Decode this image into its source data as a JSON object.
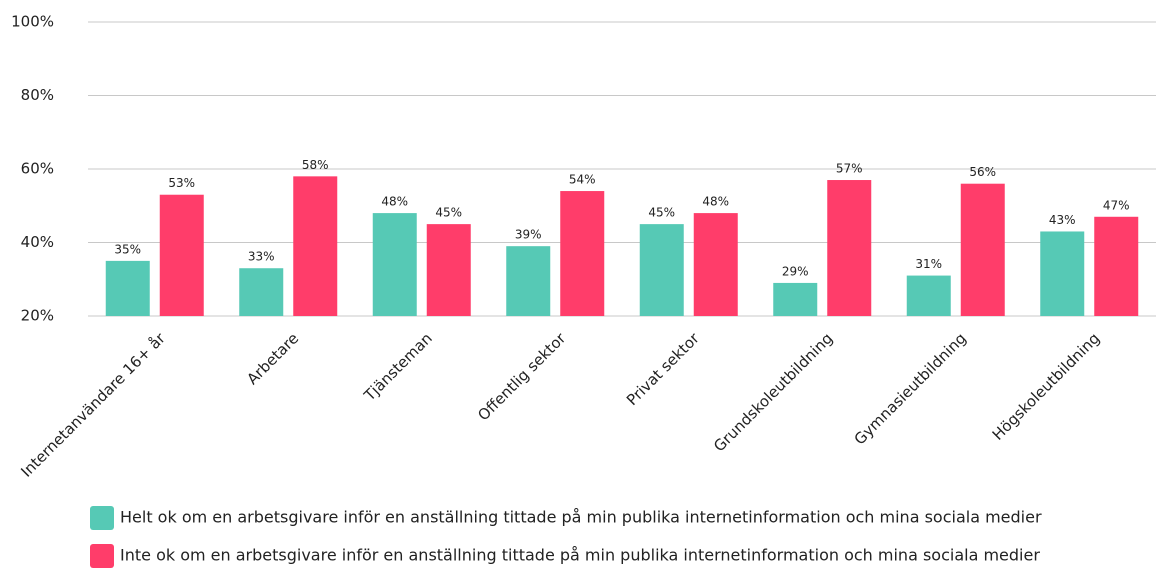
{
  "chart_data": {
    "type": "bar",
    "categories": [
      "Internetanvändare 16+ år",
      "Arbetare",
      "Tjänsteman",
      "Offentlig sektor",
      "Privat sektor",
      "Grundskoleutbildning",
      "Gymnasieutbildning",
      "Högskoleutbildning"
    ],
    "series": [
      {
        "name": "Helt ok om en arbetsgivare inför en anställning tittade på min publika internetinformation och mina sociala medier",
        "color": "#56c9b5",
        "values": [
          35,
          33,
          48,
          39,
          45,
          29,
          31,
          43
        ],
        "value_labels": [
          "35%",
          "33%",
          "48%",
          "39%",
          "45%",
          "29%",
          "31%",
          "43%"
        ]
      },
      {
        "name": "Inte ok om en arbetsgivare inför en anställning tittade på min publika internetinformation och mina sociala medier",
        "color": "#ff3d6a",
        "values": [
          53,
          58,
          45,
          54,
          48,
          57,
          56,
          47
        ],
        "value_labels": [
          "53%",
          "58%",
          "45%",
          "54%",
          "48%",
          "57%",
          "56%",
          "47%"
        ]
      }
    ],
    "ylim": [
      20,
      100
    ],
    "yticks": [
      {
        "value": 20,
        "label": "20%"
      },
      {
        "value": 40,
        "label": "40%"
      },
      {
        "value": 60,
        "label": "60%"
      },
      {
        "value": 80,
        "label": "80%"
      },
      {
        "value": 100,
        "label": "100%"
      }
    ],
    "grid": true
  }
}
